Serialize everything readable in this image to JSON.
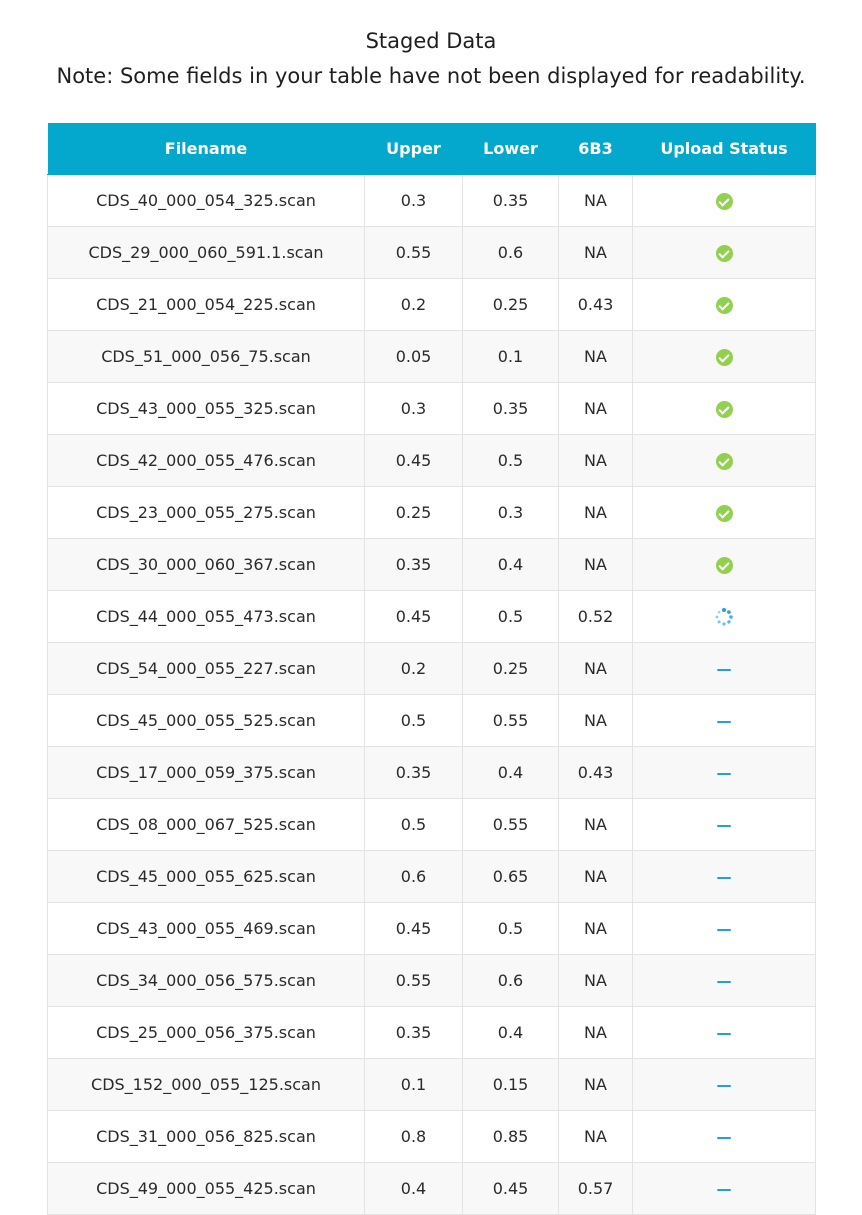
{
  "page": {
    "title": "Staged Data",
    "note": "Note: Some fields in your table have not been displayed for readability."
  },
  "table": {
    "headers": [
      "Filename",
      "Upper",
      "Lower",
      "6B3",
      "Upload Status"
    ],
    "rows": [
      {
        "filename": "CDS_40_000_054_325.scan",
        "upper": "0.3",
        "lower": "0.35",
        "b3": "NA",
        "status": "done"
      },
      {
        "filename": "CDS_29_000_060_591.1.scan",
        "upper": "0.55",
        "lower": "0.6",
        "b3": "NA",
        "status": "done"
      },
      {
        "filename": "CDS_21_000_054_225.scan",
        "upper": "0.2",
        "lower": "0.25",
        "b3": "0.43",
        "status": "done"
      },
      {
        "filename": "CDS_51_000_056_75.scan",
        "upper": "0.05",
        "lower": "0.1",
        "b3": "NA",
        "status": "done"
      },
      {
        "filename": "CDS_43_000_055_325.scan",
        "upper": "0.3",
        "lower": "0.35",
        "b3": "NA",
        "status": "done"
      },
      {
        "filename": "CDS_42_000_055_476.scan",
        "upper": "0.45",
        "lower": "0.5",
        "b3": "NA",
        "status": "done"
      },
      {
        "filename": "CDS_23_000_055_275.scan",
        "upper": "0.25",
        "lower": "0.3",
        "b3": "NA",
        "status": "done"
      },
      {
        "filename": "CDS_30_000_060_367.scan",
        "upper": "0.35",
        "lower": "0.4",
        "b3": "NA",
        "status": "done"
      },
      {
        "filename": "CDS_44_000_055_473.scan",
        "upper": "0.45",
        "lower": "0.5",
        "b3": "0.52",
        "status": "loading"
      },
      {
        "filename": "CDS_54_000_055_227.scan",
        "upper": "0.2",
        "lower": "0.25",
        "b3": "NA",
        "status": "pending"
      },
      {
        "filename": "CDS_45_000_055_525.scan",
        "upper": "0.5",
        "lower": "0.55",
        "b3": "NA",
        "status": "pending"
      },
      {
        "filename": "CDS_17_000_059_375.scan",
        "upper": "0.35",
        "lower": "0.4",
        "b3": "0.43",
        "status": "pending"
      },
      {
        "filename": "CDS_08_000_067_525.scan",
        "upper": "0.5",
        "lower": "0.55",
        "b3": "NA",
        "status": "pending"
      },
      {
        "filename": "CDS_45_000_055_625.scan",
        "upper": "0.6",
        "lower": "0.65",
        "b3": "NA",
        "status": "pending"
      },
      {
        "filename": "CDS_43_000_055_469.scan",
        "upper": "0.45",
        "lower": "0.5",
        "b3": "NA",
        "status": "pending"
      },
      {
        "filename": "CDS_34_000_056_575.scan",
        "upper": "0.55",
        "lower": "0.6",
        "b3": "NA",
        "status": "pending"
      },
      {
        "filename": "CDS_25_000_056_375.scan",
        "upper": "0.35",
        "lower": "0.4",
        "b3": "NA",
        "status": "pending"
      },
      {
        "filename": "CDS_152_000_055_125.scan",
        "upper": "0.1",
        "lower": "0.15",
        "b3": "NA",
        "status": "pending"
      },
      {
        "filename": "CDS_31_000_056_825.scan",
        "upper": "0.8",
        "lower": "0.85",
        "b3": "NA",
        "status": "pending"
      },
      {
        "filename": "CDS_49_000_055_425.scan",
        "upper": "0.4",
        "lower": "0.45",
        "b3": "0.57",
        "status": "pending"
      }
    ]
  },
  "status_icons": {
    "done": "check-circle-icon",
    "loading": "loading-spinner-icon",
    "pending": "dash-icon"
  },
  "colors": {
    "header_bg": "#05a8cd",
    "done": "#92d050",
    "loading": "#1e9fe8",
    "pending": "#1e9fe8"
  }
}
